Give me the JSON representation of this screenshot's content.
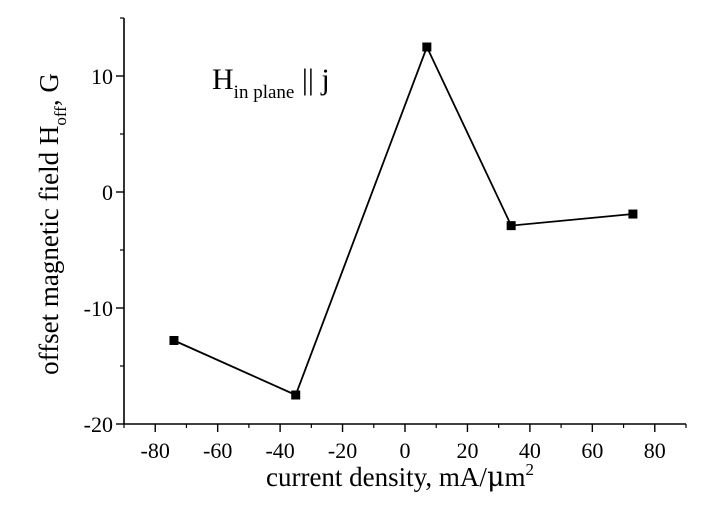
{
  "chart_data": {
    "type": "line",
    "title": "",
    "annotation": {
      "main": "H",
      "sub": "in plane",
      "rest": " || j"
    },
    "xlabel": {
      "main": "current density, mA/",
      "mu": "μ",
      "after_mu": "m",
      "sup": "2"
    },
    "ylabel": {
      "main": "offset magnetic field H",
      "sub": "off",
      "rest": ", G"
    },
    "xlim": [
      -90,
      90
    ],
    "ylim": [
      -20,
      15
    ],
    "xticks": [
      -80,
      -60,
      -40,
      -20,
      0,
      20,
      40,
      60,
      80
    ],
    "yticks": [
      -20,
      -10,
      0,
      10
    ],
    "xminor_step": 10,
    "yminor_step": 5,
    "grid": false,
    "series": [
      {
        "color": "#000000",
        "marker": "square",
        "x": [
          -74,
          -35,
          7,
          34,
          73
        ],
        "y": [
          -12.8,
          -17.5,
          12.5,
          -2.9,
          -1.9
        ]
      }
    ]
  }
}
